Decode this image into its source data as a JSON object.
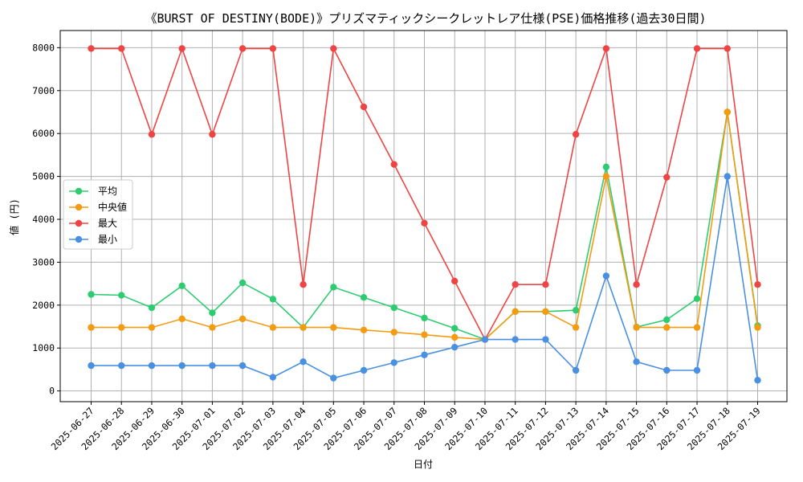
{
  "chart_data": {
    "type": "line",
    "title": "《BURST OF DESTINY(BODE)》プリズマティックシークレットレア仕様(PSE)価格推移(過去30日間)",
    "xlabel": "日付",
    "ylabel": "値 (円)",
    "ylim": [
      -250,
      8400
    ],
    "yticks": [
      0,
      1000,
      2000,
      3000,
      4000,
      5000,
      6000,
      7000,
      8000
    ],
    "grid": true,
    "legend_position": "center-left",
    "categories": [
      "2025-06-27",
      "2025-06-28",
      "2025-06-29",
      "2025-06-30",
      "2025-07-01",
      "2025-07-02",
      "2025-07-03",
      "2025-07-04",
      "2025-07-05",
      "2025-07-06",
      "2025-07-07",
      "2025-07-08",
      "2025-07-09",
      "2025-07-10",
      "2025-07-11",
      "2025-07-12",
      "2025-07-13",
      "2025-07-14",
      "2025-07-15",
      "2025-07-16",
      "2025-07-17",
      "2025-07-18",
      "2025-07-19"
    ],
    "series": [
      {
        "name": "平均",
        "color": "#2ecc71",
        "values": [
          2250,
          2230,
          1940,
          2450,
          1820,
          2520,
          2140,
          1480,
          2420,
          2180,
          1940,
          1700,
          1460,
          1200,
          1850,
          1850,
          1880,
          5220,
          1490,
          1660,
          2150,
          6500,
          1520
        ]
      },
      {
        "name": "中央値",
        "color": "#f39c12",
        "values": [
          1480,
          1480,
          1480,
          1680,
          1480,
          1680,
          1480,
          1480,
          1480,
          1420,
          1370,
          1310,
          1250,
          1200,
          1850,
          1850,
          1480,
          5000,
          1480,
          1480,
          1480,
          6500,
          1480
        ]
      },
      {
        "name": "最大",
        "color": "#ef4444",
        "values": [
          7980,
          7980,
          5980,
          7980,
          5980,
          7980,
          7980,
          2480,
          7980,
          6620,
          5280,
          3910,
          2560,
          1200,
          2480,
          2480,
          5980,
          7980,
          2480,
          4980,
          7980,
          7980,
          2480
        ]
      },
      {
        "name": "最小",
        "color": "#4a90e2",
        "values": [
          590,
          590,
          590,
          590,
          590,
          590,
          320,
          680,
          300,
          480,
          660,
          840,
          1020,
          1200,
          1200,
          1200,
          480,
          2680,
          680,
          480,
          480,
          5000,
          250
        ]
      }
    ]
  }
}
